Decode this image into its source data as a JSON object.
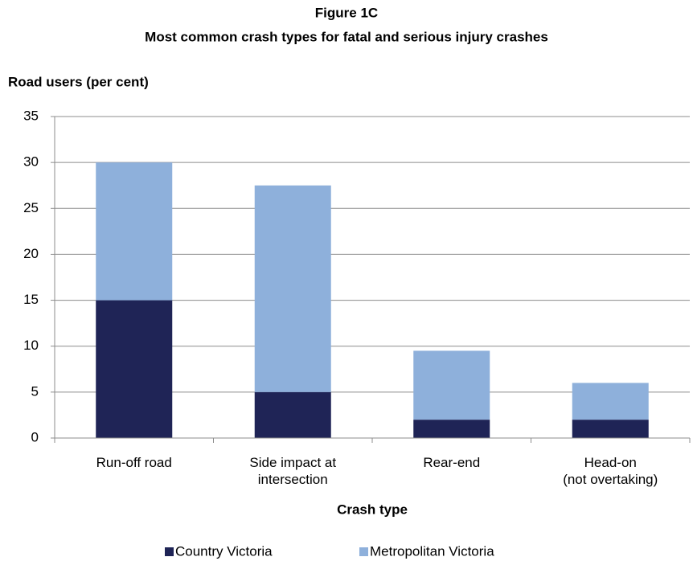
{
  "chart_data": {
    "type": "stacked_bar",
    "title": "Figure 1C",
    "subtitle": "Most common crash types for fatal and serious injury crashes",
    "y_label": "Road users (per cent)",
    "x_label": "Crash type",
    "categories": [
      "Run-off road",
      "Side impact at\nintersection",
      "Rear-end",
      "Head-on\n(not overtaking)"
    ],
    "series": [
      {
        "name": "Country Victoria",
        "color": "#1f2456",
        "values": [
          15,
          5,
          2,
          2
        ]
      },
      {
        "name": "Metropolitan Victoria",
        "color": "#8eb0db",
        "values": [
          15,
          22.5,
          7.5,
          4
        ]
      }
    ],
    "ylim": [
      0,
      35
    ],
    "yticks": [
      0,
      5,
      10,
      15,
      20,
      25,
      30,
      35
    ],
    "grid": true,
    "legend": "bottom"
  }
}
